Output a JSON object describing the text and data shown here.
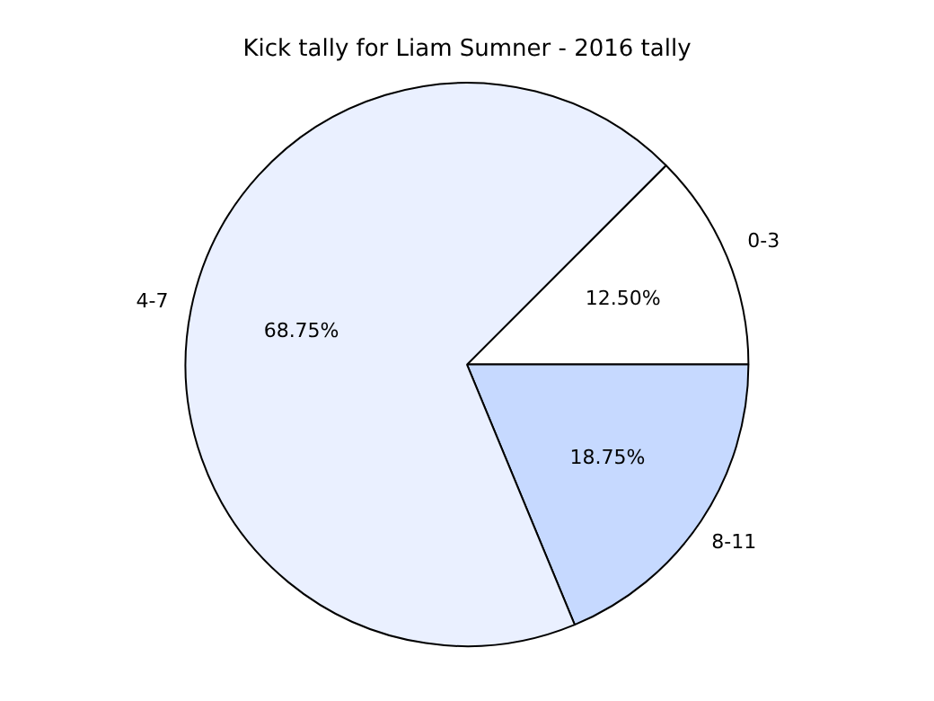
{
  "chart_data": {
    "type": "pie",
    "title": "Kick tally for Liam Sumner - 2016 tally",
    "categories": [
      "0-3",
      "8-11",
      "4-7"
    ],
    "values": [
      12.5,
      18.75,
      68.75
    ],
    "colors": [
      "#ffffff",
      "#c6d9ff",
      "#eaf0ff"
    ],
    "value_labels": [
      "12.50%",
      "18.75%",
      "68.75%"
    ],
    "legend": false
  }
}
